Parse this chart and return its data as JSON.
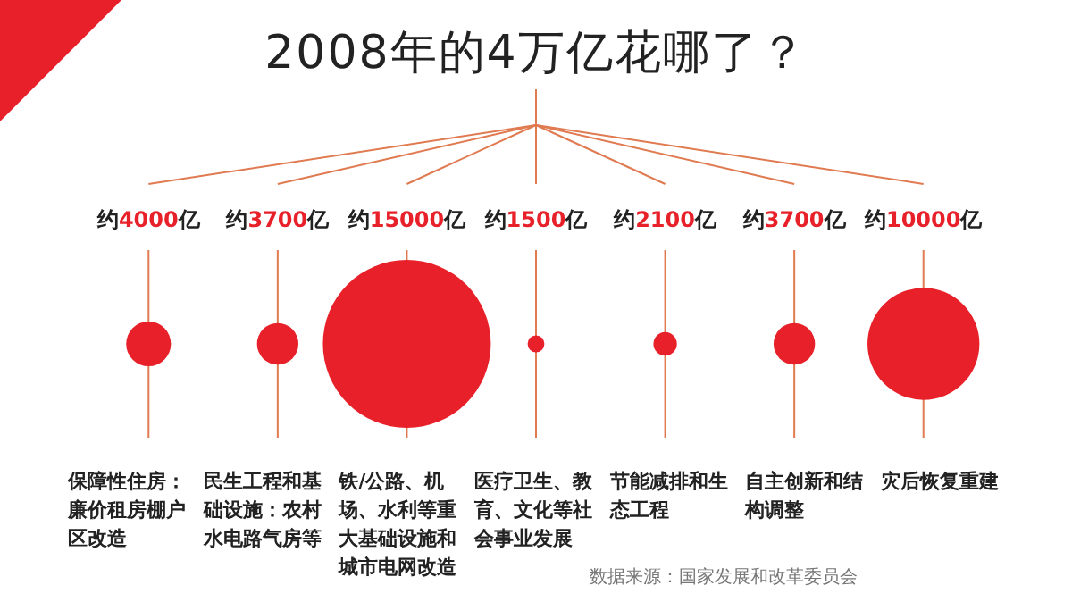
{
  "chart_data": {
    "type": "other",
    "title": "2008年的4万亿花哪了？",
    "categories": [
      "保障性住房：廉价租房棚户区改造",
      "民生工程和基础设施：农村水电路气房等",
      "铁/公路、机场、水利等重大基础设施和城市电网改造",
      "医疗卫生、教育、文化等社会事业发展",
      "节能减排和生态工程",
      "自主创新和结构调整",
      "灾后恢复重建"
    ],
    "values": [
      4000,
      3700,
      15000,
      1500,
      2100,
      3700,
      10000
    ],
    "value_labels": [
      "约4000亿",
      "约3700亿",
      "约15000亿",
      "约1500亿",
      "约2100亿",
      "约3700亿",
      "约10000亿"
    ],
    "color": "#e8202a",
    "annotations": [
      "数据来源：国家发展和改革委员会"
    ]
  }
}
